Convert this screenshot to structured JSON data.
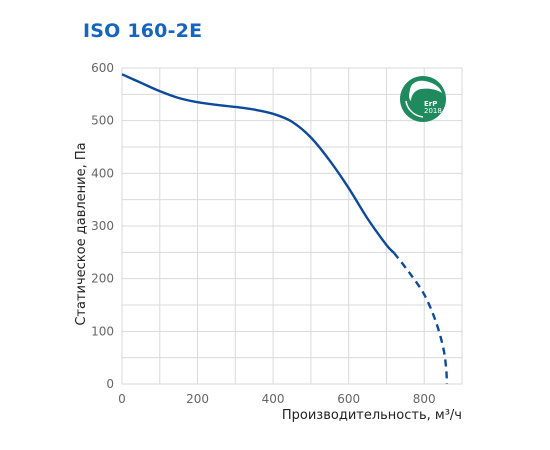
{
  "title": "ISO 160-2E",
  "badge": {
    "icon": "erp-leaf-icon",
    "label": "ErP",
    "year": "2018",
    "color": "#1f8a5e"
  },
  "colors": {
    "curve": "#0d4a9c",
    "title": "#1565c0",
    "grid": "#d9d9d9"
  },
  "chart_data": {
    "type": "line",
    "title": "",
    "xlabel": "Производительность, м³/ч",
    "ylabel": "Статическое давление, Па",
    "xlim": [
      0,
      900
    ],
    "ylim": [
      0,
      600
    ],
    "xticks": [
      0,
      200,
      400,
      600,
      800
    ],
    "yticks": [
      0,
      100,
      200,
      300,
      400,
      500,
      600
    ],
    "grid": true,
    "series": [
      {
        "name": "",
        "style": "solid",
        "x": [
          0,
          50,
          100,
          150,
          200,
          250,
          300,
          350,
          400,
          450,
          500,
          550,
          600,
          650,
          700,
          720
        ],
        "y": [
          588,
          572,
          556,
          543,
          535,
          530,
          526,
          521,
          513,
          498,
          468,
          424,
          372,
          314,
          264,
          249
        ]
      },
      {
        "name": "",
        "style": "dashed",
        "x": [
          720,
          760,
          800,
          830,
          850,
          858,
          860
        ],
        "y": [
          249,
          212,
          170,
          120,
          70,
          30,
          0
        ]
      }
    ]
  }
}
